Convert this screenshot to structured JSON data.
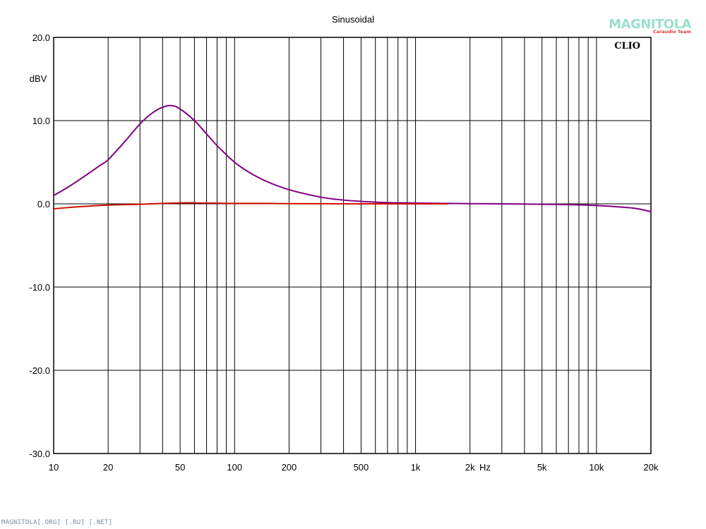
{
  "chart_data": {
    "type": "line",
    "title": "Sinusoidal",
    "ylabel": "dBV",
    "xlabel_unit": "Hz",
    "x_scale": "log",
    "xlim": [
      10,
      20000
    ],
    "ylim": [
      -30,
      20
    ],
    "y_ticks": [
      {
        "value": 20,
        "label": "20.0"
      },
      {
        "value": 10,
        "label": "10.0"
      },
      {
        "value": 0,
        "label": "0.0"
      },
      {
        "value": -10,
        "label": "-10.0"
      },
      {
        "value": -20,
        "label": "-20.0"
      },
      {
        "value": -30,
        "label": "-30.0"
      }
    ],
    "x_ticks": [
      {
        "value": 10,
        "label": "10"
      },
      {
        "value": 20,
        "label": "20"
      },
      {
        "value": 50,
        "label": "50"
      },
      {
        "value": 100,
        "label": "100"
      },
      {
        "value": 200,
        "label": "200"
      },
      {
        "value": 500,
        "label": "500"
      },
      {
        "value": 1000,
        "label": "1k"
      },
      {
        "value": 2000,
        "label": "2k"
      },
      {
        "value": 5000,
        "label": "5k"
      },
      {
        "value": 10000,
        "label": "10k"
      },
      {
        "value": 20000,
        "label": "20k"
      }
    ],
    "grid": true,
    "watermark": "CLIO",
    "series": [
      {
        "color": "#800080",
        "points": [
          [
            10,
            1.0
          ],
          [
            12,
            2.0
          ],
          [
            15,
            3.4
          ],
          [
            18,
            4.6
          ],
          [
            20,
            5.3
          ],
          [
            25,
            7.6
          ],
          [
            30,
            9.6
          ],
          [
            35,
            10.9
          ],
          [
            40,
            11.6
          ],
          [
            45,
            11.8
          ],
          [
            50,
            11.4
          ],
          [
            60,
            10.0
          ],
          [
            70,
            8.4
          ],
          [
            80,
            7.0
          ],
          [
            100,
            5.0
          ],
          [
            120,
            3.8
          ],
          [
            150,
            2.7
          ],
          [
            200,
            1.7
          ],
          [
            300,
            0.8
          ],
          [
            400,
            0.45
          ],
          [
            500,
            0.3
          ],
          [
            700,
            0.15
          ],
          [
            1000,
            0.1
          ],
          [
            2000,
            0.02
          ],
          [
            3000,
            0.0
          ],
          [
            5000,
            -0.05
          ],
          [
            7000,
            -0.1
          ],
          [
            10000,
            -0.2
          ],
          [
            14000,
            -0.4
          ],
          [
            17000,
            -0.6
          ],
          [
            20000,
            -0.95
          ]
        ]
      },
      {
        "color": "#d01000",
        "points": [
          [
            10,
            -0.6
          ],
          [
            12,
            -0.45
          ],
          [
            15,
            -0.3
          ],
          [
            20,
            -0.15
          ],
          [
            30,
            -0.05
          ],
          [
            40,
            0.05
          ],
          [
            50,
            0.12
          ],
          [
            60,
            0.12
          ],
          [
            80,
            0.08
          ],
          [
            100,
            0.05
          ],
          [
            150,
            0.05
          ],
          [
            200,
            0.02
          ],
          [
            500,
            0.0
          ],
          [
            1000,
            0.0
          ],
          [
            1500,
            0.0
          ]
        ]
      }
    ]
  },
  "logo": {
    "text": "MAGNITOLA",
    "sub": "Caraudio Team"
  },
  "footer": "MAGNITOLA[.ORG] [.RU] [.NET]"
}
